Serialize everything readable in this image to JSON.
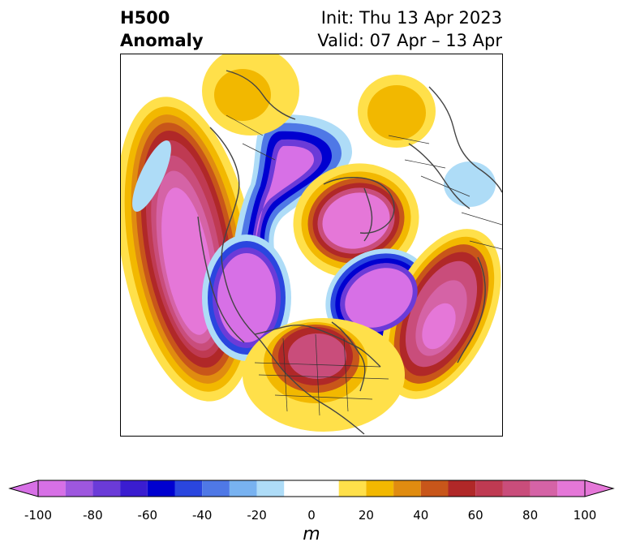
{
  "header": {
    "title_line1": "H500",
    "title_line2": "Anomaly",
    "init": "Init: Thu 13 Apr 2023",
    "valid": "Valid: 07 Apr – 13 Apr"
  },
  "colorbar": {
    "unit": "m",
    "ticks": [
      "-100",
      "-80",
      "-60",
      "-40",
      "-20",
      "0",
      "20",
      "40",
      "60",
      "80",
      "100"
    ],
    "levels": [
      {
        "min": -100,
        "max": -90,
        "color": "#d770e6"
      },
      {
        "min": -90,
        "max": -80,
        "color": "#9e57df"
      },
      {
        "min": -80,
        "max": -70,
        "color": "#6b3bd8"
      },
      {
        "min": -70,
        "max": -60,
        "color": "#3a1dd0"
      },
      {
        "min": -60,
        "max": -50,
        "color": "#0000d0"
      },
      {
        "min": -50,
        "max": -40,
        "color": "#2a46df"
      },
      {
        "min": -40,
        "max": -30,
        "color": "#4f78e6"
      },
      {
        "min": -30,
        "max": -20,
        "color": "#78b2f0"
      },
      {
        "min": -20,
        "max": -10,
        "color": "#aedcf7"
      },
      {
        "min": -10,
        "max": 10,
        "color": "#ffffff"
      },
      {
        "min": 10,
        "max": 20,
        "color": "#ffe04a"
      },
      {
        "min": 20,
        "max": 30,
        "color": "#f2b800"
      },
      {
        "min": 30,
        "max": 40,
        "color": "#e08c10"
      },
      {
        "min": 40,
        "max": 50,
        "color": "#c8561a"
      },
      {
        "min": 50,
        "max": 60,
        "color": "#b02828"
      },
      {
        "min": 60,
        "max": 70,
        "color": "#bf3a52"
      },
      {
        "min": 70,
        "max": 80,
        "color": "#c94d7b"
      },
      {
        "min": 80,
        "max": 90,
        "color": "#d563a6"
      },
      {
        "min": 90,
        "max": 100,
        "color": "#e577d8"
      }
    ],
    "extend_low_color": "#d770e6",
    "extend_high_color": "#e577d8"
  },
  "map": {
    "projection": "north-polar-stereographic",
    "field": "500 hPa geopotential height anomaly",
    "coastline_color": "#444444",
    "border_color": "#333333"
  }
}
